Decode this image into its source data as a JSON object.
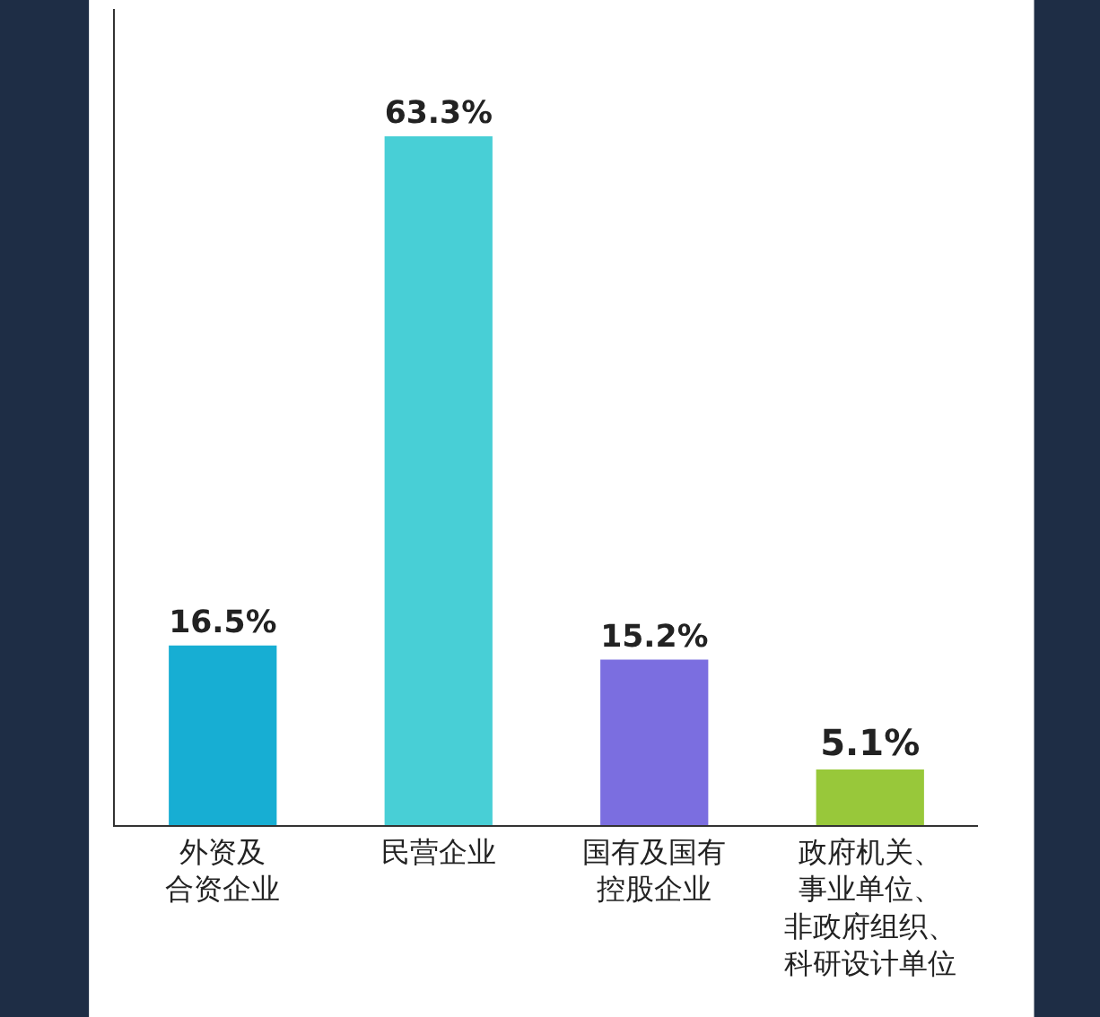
{
  "chart_data": {
    "type": "bar",
    "categories": [
      "外资及合资企业",
      "民营企业",
      "国有及国有控股企业",
      "政府机关、事业单位、非政府组织、科研设计单位"
    ],
    "values": [
      16.5,
      63.3,
      15.2,
      5.1
    ],
    "colors": [
      "#17aed3",
      "#48cfd6",
      "#7b6ee0",
      "#98c83a"
    ],
    "value_labels": [
      "16.5%",
      "63.3%",
      "15.2%",
      "5.1%"
    ],
    "ylim": [
      0,
      75
    ],
    "tick_labels": "x"
  }
}
